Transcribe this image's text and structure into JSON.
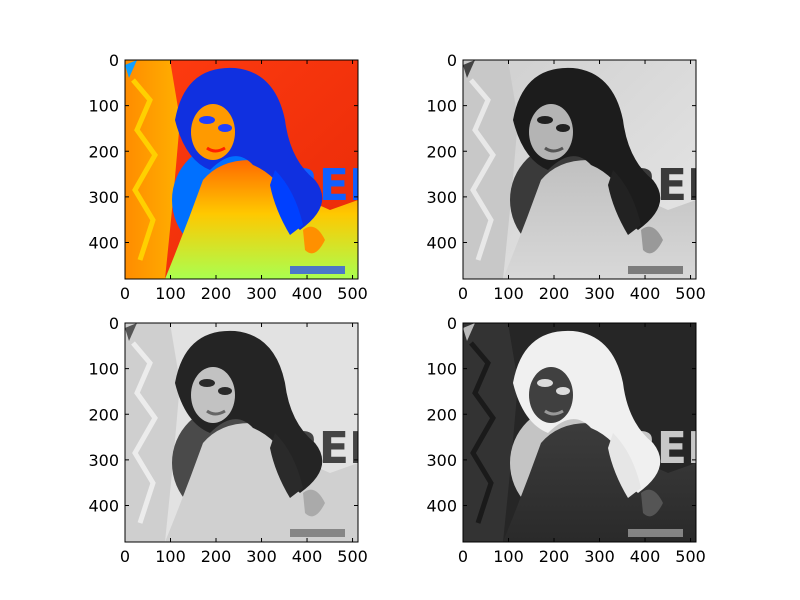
{
  "chart_data": [
    {
      "type": "image",
      "colormap": "jet",
      "xlim": [
        0,
        512
      ],
      "ylim": [
        480,
        0
      ],
      "xticks": [
        "0",
        "100",
        "200",
        "300",
        "400",
        "500"
      ],
      "yticks": [
        "0",
        "100",
        "200",
        "300",
        "400"
      ],
      "grid": false
    },
    {
      "type": "image",
      "colormap": "gray",
      "xlim": [
        0,
        512
      ],
      "ylim": [
        480,
        0
      ],
      "xticks": [
        "0",
        "100",
        "200",
        "300",
        "400",
        "500"
      ],
      "yticks": [
        "0",
        "100",
        "200",
        "300",
        "400"
      ],
      "grid": false
    },
    {
      "type": "image",
      "colormap": "gray",
      "xlim": [
        0,
        512
      ],
      "ylim": [
        480,
        0
      ],
      "xticks": [
        "0",
        "100",
        "200",
        "300",
        "400",
        "500"
      ],
      "yticks": [
        "0",
        "100",
        "200",
        "300",
        "400"
      ],
      "grid": false
    },
    {
      "type": "image",
      "colormap": "gray (inverted)",
      "xlim": [
        0,
        512
      ],
      "ylim": [
        480,
        0
      ],
      "xticks": [
        "0",
        "100",
        "200",
        "300",
        "400",
        "500"
      ],
      "yticks": [
        "0",
        "100",
        "200",
        "300",
        "400"
      ],
      "grid": false
    }
  ],
  "colors": {
    "jet_background": "#f03010",
    "jet_figure": "#2060ff",
    "gray_light": "#dcdcdc",
    "gray_dark": "#1e1e1e",
    "inverted_background": "#262626",
    "inverted_figure": "#f2f2f2"
  }
}
